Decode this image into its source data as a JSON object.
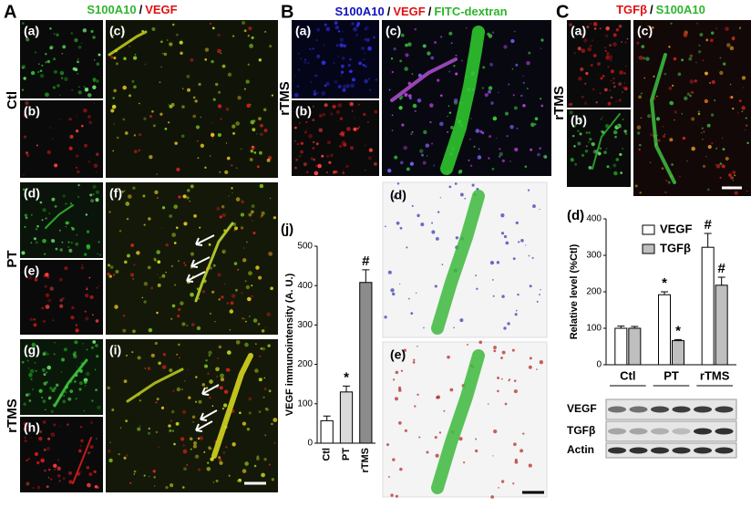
{
  "figure": {
    "A": {
      "label": "A",
      "header": [
        "S100A10",
        "/",
        "VEGF"
      ],
      "rows": [
        "Ctl",
        "PT",
        "rTMS"
      ],
      "panels": [
        "(a)",
        "(b)",
        "(c)",
        "(d)",
        "(e)",
        "(f)",
        "(g)",
        "(h)",
        "(i)"
      ]
    },
    "B": {
      "label": "B",
      "header": [
        "S100A10",
        "/",
        "VEGF",
        "/",
        "FITC-dextran"
      ],
      "rows": [
        "rTMS"
      ],
      "panels": [
        "(a)",
        "(b)",
        "(c)",
        "(d)",
        "(e)"
      ]
    },
    "C": {
      "label": "C",
      "header": [
        "TGFβ",
        "/",
        "S100A10"
      ],
      "rows": [
        "rTMS"
      ],
      "panels": [
        "(a)",
        "(b)",
        "(c)"
      ]
    },
    "blot": {
      "rows": [
        "VEGF",
        "TGFβ",
        "Actin"
      ]
    }
  },
  "chart_data": [
    {
      "type": "bar",
      "label": "(j)",
      "ylabel": "VEGF immunointensity (A. U.)",
      "categories": [
        "Ctl",
        "PT",
        "rTMS"
      ],
      "values": [
        57,
        130,
        408
      ],
      "errors": [
        12,
        15,
        32
      ],
      "colors": [
        "#ffffff",
        "#d9d9d9",
        "#8c8c8c"
      ],
      "significance": [
        null,
        "*",
        "#"
      ],
      "ylim": [
        0,
        500
      ],
      "yticks": [
        0,
        100,
        200,
        300,
        400,
        500
      ]
    },
    {
      "type": "grouped-bar",
      "label": "(d)",
      "ylabel": "Relative level (%Ctl)",
      "categories": [
        "Ctl",
        "PT",
        "rTMS"
      ],
      "series": [
        {
          "name": "VEGF",
          "color": "#ffffff",
          "values": [
            100,
            192,
            322
          ],
          "errors": [
            6,
            8,
            38
          ],
          "significance": [
            null,
            "*",
            "#"
          ]
        },
        {
          "name": "TGFβ",
          "color": "#bfbfbf",
          "values": [
            100,
            66,
            218
          ],
          "errors": [
            5,
            3,
            22
          ],
          "significance": [
            null,
            "*",
            "#"
          ]
        }
      ],
      "ylim": [
        0,
        400
      ],
      "yticks": [
        0,
        100,
        200,
        300,
        400
      ],
      "legend": "top-left"
    }
  ]
}
